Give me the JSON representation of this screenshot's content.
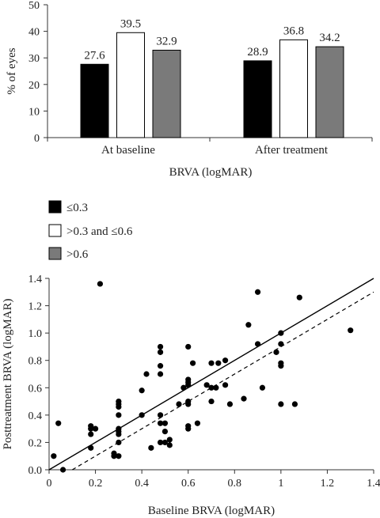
{
  "chart_data": [
    {
      "type": "bar",
      "categories": [
        "At baseline",
        "After treatment"
      ],
      "series": [
        {
          "name": "≤0.3",
          "values": [
            27.6,
            28.9
          ],
          "color": "#000000"
        },
        {
          "name": ">0.3 and ≤0.6",
          "values": [
            39.5,
            36.8
          ],
          "color": "#ffffff"
        },
        {
          "name": ">0.6",
          "values": [
            32.9,
            34.2
          ],
          "color": "#7a7a7a"
        }
      ],
      "data_labels": [
        "27.6",
        "39.5",
        "32.9",
        "28.9",
        "36.8",
        "34.2"
      ],
      "ylabel": "% of eyes",
      "xlabel": "BRVA (logMAR)",
      "ylim": [
        0,
        50
      ],
      "yticks": [
        "0",
        "10",
        "20",
        "30",
        "40",
        "50"
      ],
      "legend": "below chart, stacked vertically",
      "grid": false
    },
    {
      "type": "scatter",
      "xlabel": "Baseline BRVA (logMAR)",
      "ylabel": "Posttreatment BRVA (logMAR)",
      "xlim": [
        0,
        1.4
      ],
      "ylim": [
        0,
        1.4
      ],
      "xticks": [
        "0",
        "0.2",
        "0.4",
        "0.6",
        "0.8",
        "1",
        "1.2",
        "1.4"
      ],
      "yticks": [
        "0.0",
        "0.2",
        "0.4",
        "0.6",
        "0.8",
        "1.0",
        "1.2",
        "1.4"
      ],
      "reference_line_solid": {
        "slope": 1,
        "intercept": 0
      },
      "regression_line_dashed": {
        "slope": 1,
        "intercept": -0.1
      },
      "grid": false,
      "points": [
        [
          0.02,
          0.1
        ],
        [
          0.04,
          0.34
        ],
        [
          0.06,
          0.0
        ],
        [
          0.18,
          0.32
        ],
        [
          0.18,
          0.3
        ],
        [
          0.18,
          0.26
        ],
        [
          0.18,
          0.16
        ],
        [
          0.2,
          0.3
        ],
        [
          0.22,
          1.36
        ],
        [
          0.28,
          0.12
        ],
        [
          0.28,
          0.1
        ],
        [
          0.3,
          0.5
        ],
        [
          0.3,
          0.48
        ],
        [
          0.3,
          0.46
        ],
        [
          0.3,
          0.4
        ],
        [
          0.3,
          0.3
        ],
        [
          0.3,
          0.28
        ],
        [
          0.3,
          0.26
        ],
        [
          0.3,
          0.2
        ],
        [
          0.3,
          0.1
        ],
        [
          0.4,
          0.58
        ],
        [
          0.4,
          0.4
        ],
        [
          0.42,
          0.7
        ],
        [
          0.44,
          0.16
        ],
        [
          0.48,
          0.9
        ],
        [
          0.48,
          0.86
        ],
        [
          0.48,
          0.76
        ],
        [
          0.48,
          0.7
        ],
        [
          0.48,
          0.4
        ],
        [
          0.48,
          0.34
        ],
        [
          0.48,
          0.2
        ],
        [
          0.5,
          0.34
        ],
        [
          0.5,
          0.28
        ],
        [
          0.5,
          0.2
        ],
        [
          0.52,
          0.22
        ],
        [
          0.52,
          0.18
        ],
        [
          0.56,
          0.48
        ],
        [
          0.58,
          0.6
        ],
        [
          0.6,
          0.9
        ],
        [
          0.6,
          0.66
        ],
        [
          0.6,
          0.64
        ],
        [
          0.6,
          0.62
        ],
        [
          0.6,
          0.5
        ],
        [
          0.6,
          0.48
        ],
        [
          0.6,
          0.32
        ],
        [
          0.6,
          0.3
        ],
        [
          0.62,
          0.78
        ],
        [
          0.64,
          0.34
        ],
        [
          0.68,
          0.62
        ],
        [
          0.7,
          0.78
        ],
        [
          0.7,
          0.6
        ],
        [
          0.7,
          0.5
        ],
        [
          0.72,
          0.6
        ],
        [
          0.73,
          0.78
        ],
        [
          0.76,
          0.8
        ],
        [
          0.76,
          0.62
        ],
        [
          0.78,
          0.48
        ],
        [
          0.84,
          0.52
        ],
        [
          0.86,
          1.06
        ],
        [
          0.9,
          1.3
        ],
        [
          0.9,
          0.92
        ],
        [
          0.92,
          0.6
        ],
        [
          0.98,
          0.86
        ],
        [
          1.0,
          1.0
        ],
        [
          1.0,
          0.92
        ],
        [
          1.0,
          0.78
        ],
        [
          1.0,
          0.76
        ],
        [
          1.0,
          0.48
        ],
        [
          1.06,
          0.48
        ],
        [
          1.08,
          1.26
        ],
        [
          1.3,
          1.02
        ]
      ]
    }
  ]
}
